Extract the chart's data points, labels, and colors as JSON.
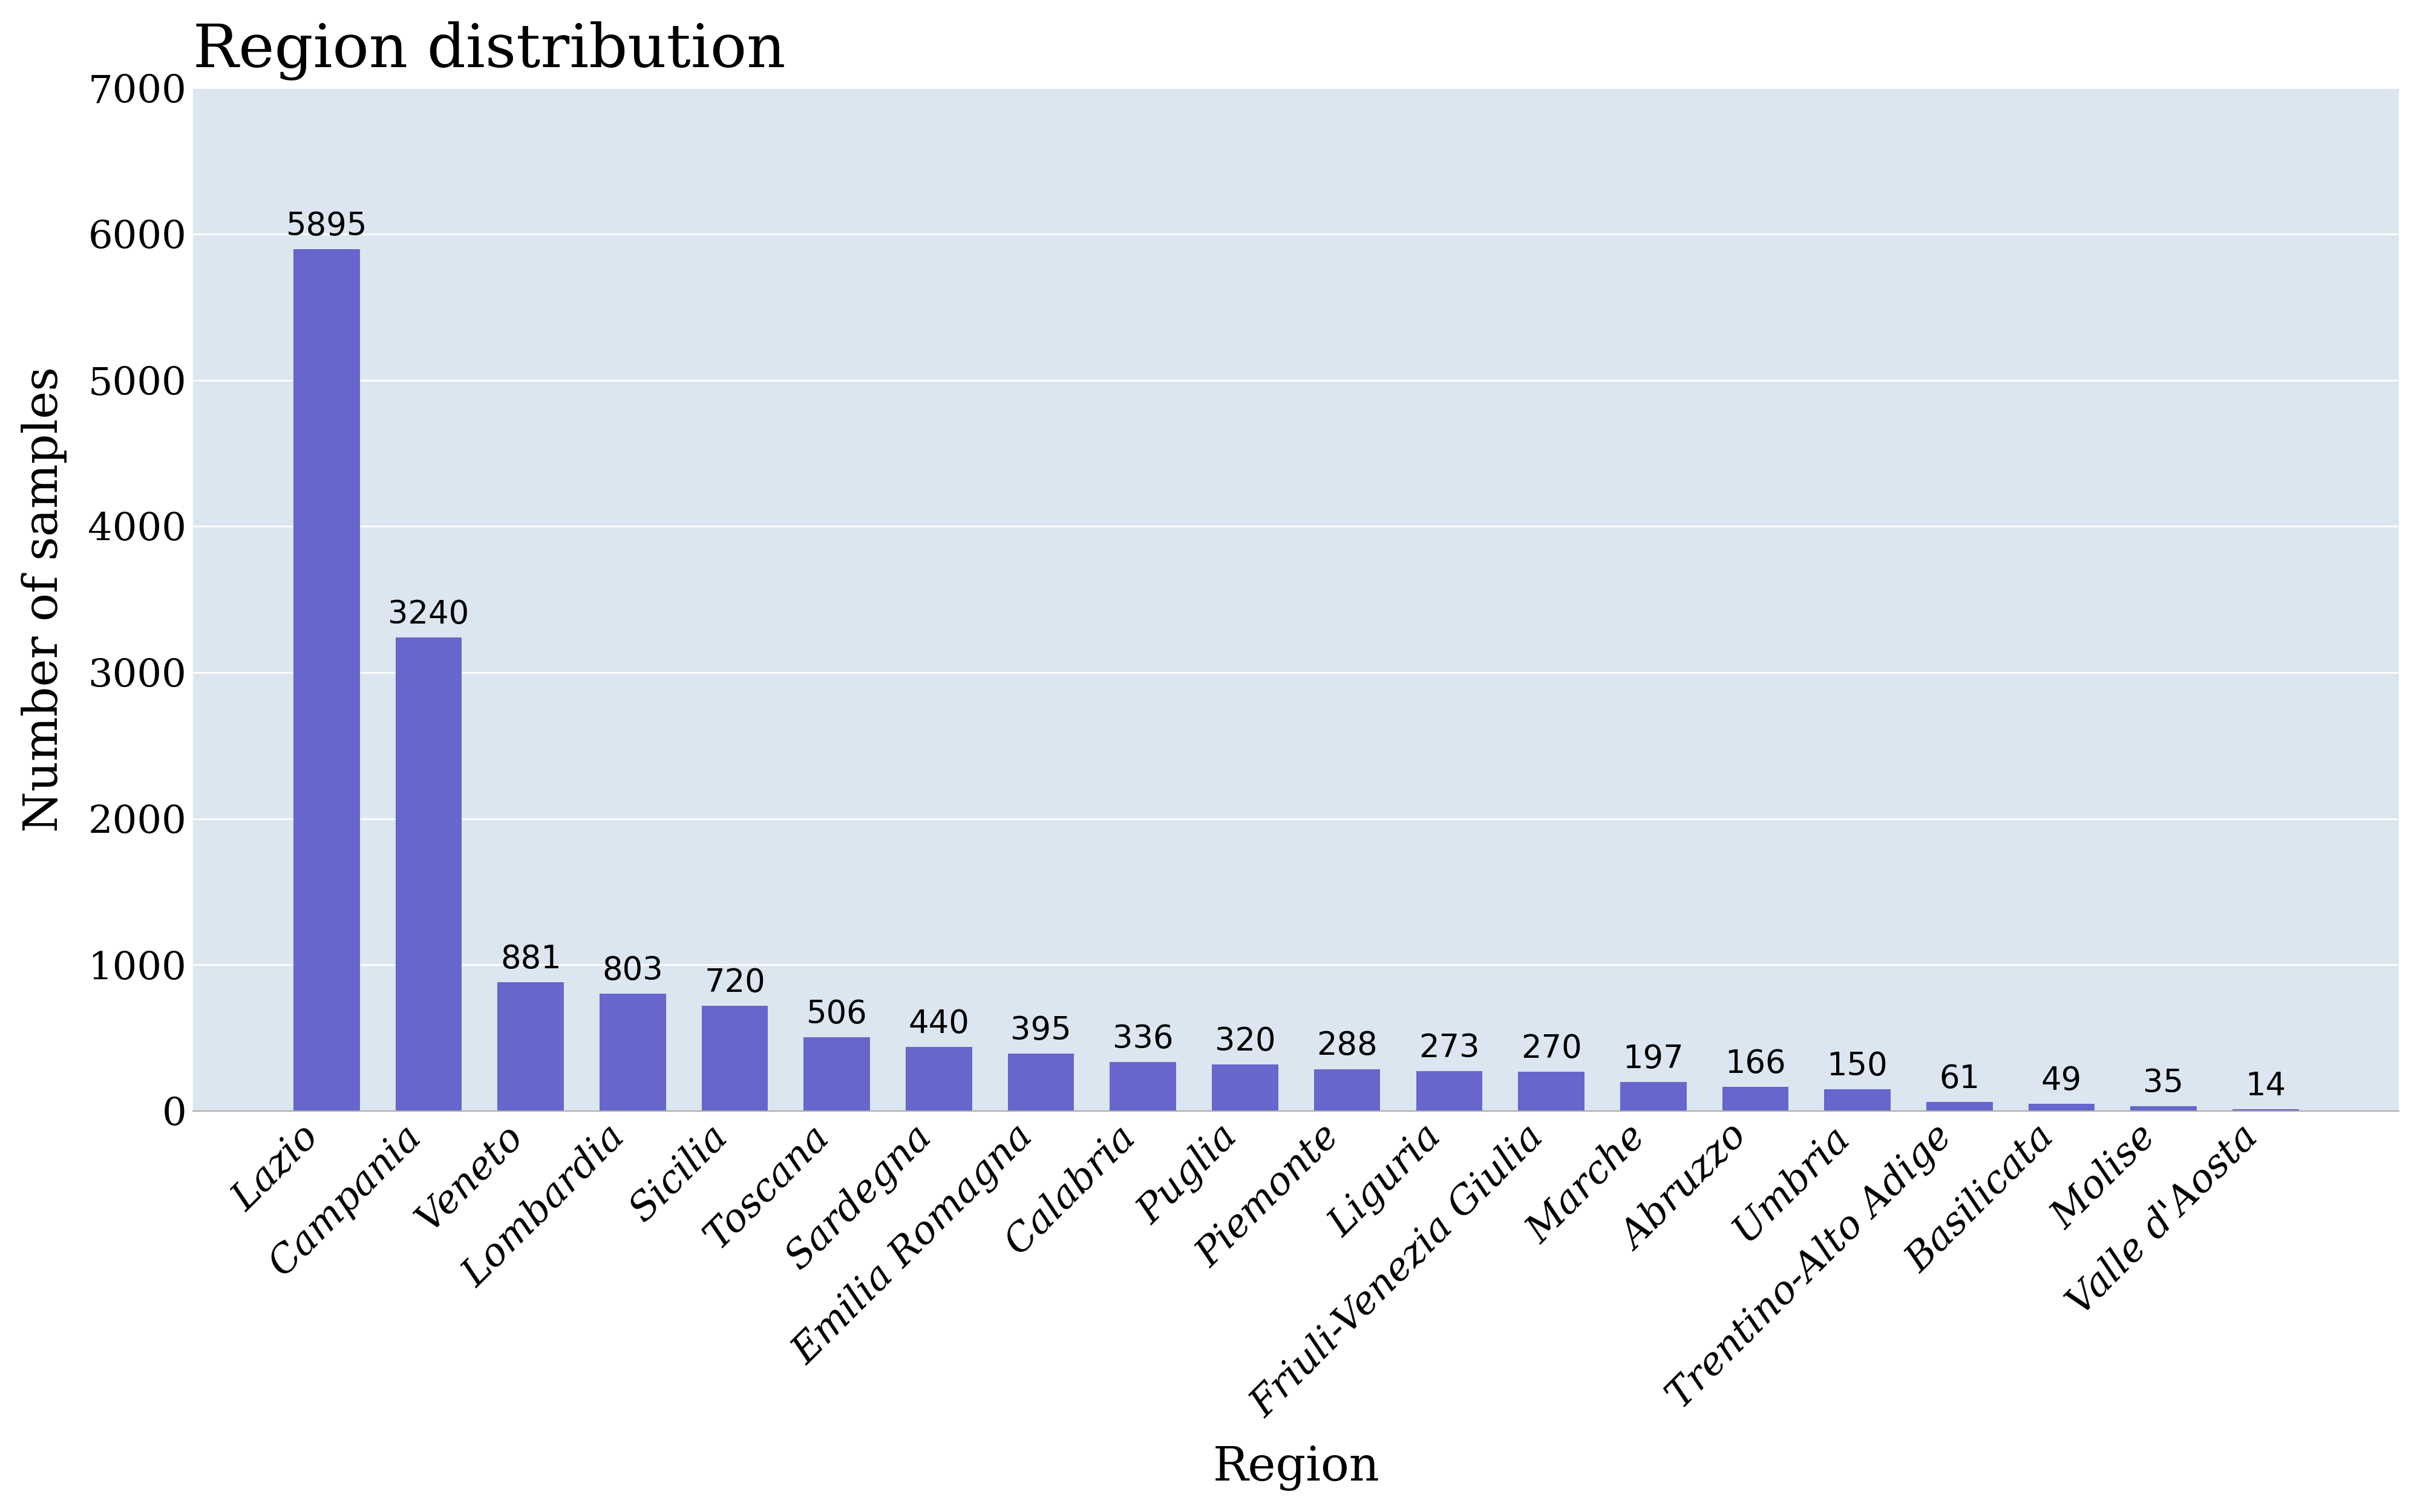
{
  "title": "Region distribution",
  "xlabel": "Region",
  "ylabel": "Number of samples",
  "categories": [
    "Lazio",
    "Campania",
    "Veneto",
    "Lombardia",
    "Sicilia",
    "Toscana",
    "Sardegna",
    "Emilia Romagna",
    "Calabria",
    "Puglia",
    "Piemonte",
    "Liguria",
    "Friuli-Venezia Giulia",
    "Marche",
    "Abruzzo",
    "Umbria",
    "Trentino-Alto Adige",
    "Basilicata",
    "Molise",
    "Valle d'Aosta"
  ],
  "values": [
    5895,
    3240,
    881,
    803,
    720,
    506,
    440,
    395,
    336,
    320,
    288,
    273,
    270,
    197,
    166,
    150,
    61,
    49,
    35,
    14
  ],
  "bar_color": "#6666cc",
  "background_color": "#dce6f0",
  "ylim": [
    0,
    7000
  ],
  "yticks": [
    0,
    1000,
    2000,
    3000,
    4000,
    5000,
    6000,
    7000
  ],
  "title_fontsize": 72,
  "axis_label_fontsize": 56,
  "tick_label_fontsize": 46,
  "value_label_fontsize": 38,
  "fig_bg_color": "#ffffff"
}
